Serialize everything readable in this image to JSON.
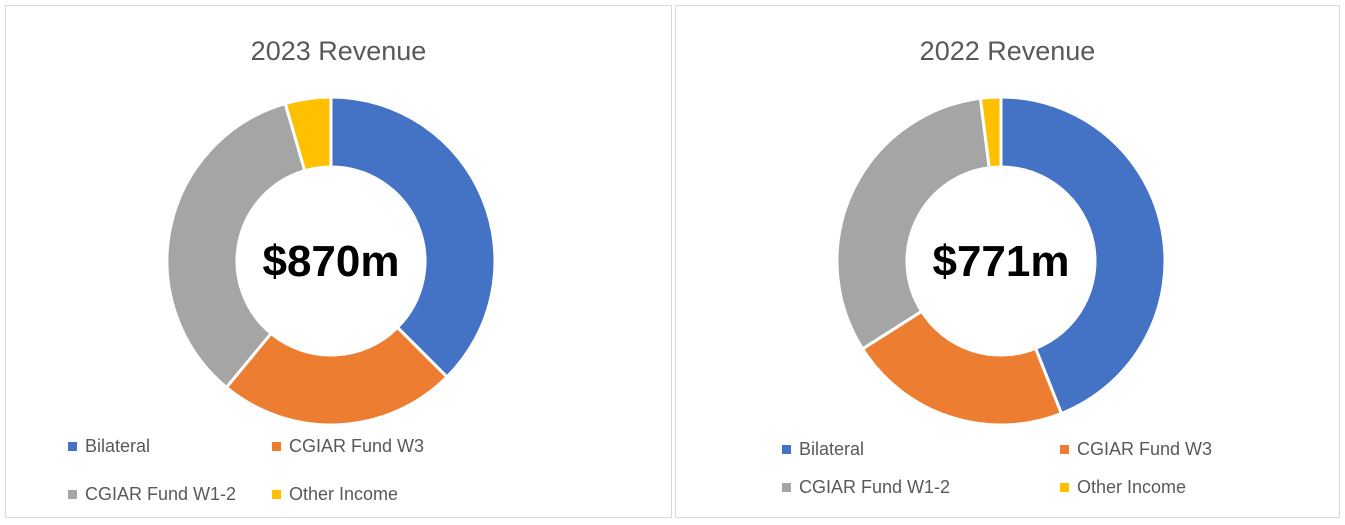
{
  "chart_data": [
    {
      "type": "pie",
      "title": "2023 Revenue",
      "center_label": "$870m",
      "categories": [
        "Bilateral",
        "CGIAR Fund W3",
        "CGIAR Fund W1-2",
        "Other Income"
      ],
      "values": [
        37.5,
        23.5,
        34.5,
        4.5
      ],
      "colors": [
        "#4472C4",
        "#ED7D31",
        "#A5A5A5",
        "#FFC000"
      ],
      "legend": {
        "placement": "bottom",
        "items": [
          "Bilateral",
          "CGIAR Fund W3",
          "CGIAR Fund W1-2",
          "Other Income"
        ]
      }
    },
    {
      "type": "pie",
      "title": "2022 Revenue",
      "center_label": "$771m",
      "categories": [
        "Bilateral",
        "CGIAR Fund W3",
        "CGIAR Fund W1-2",
        "Other Income"
      ],
      "values": [
        44,
        22,
        32,
        2
      ],
      "colors": [
        "#4472C4",
        "#ED7D31",
        "#A5A5A5",
        "#FFC000"
      ],
      "legend": {
        "placement": "bottom",
        "items": [
          "Bilateral",
          "CGIAR Fund W3",
          "CGIAR Fund W1-2",
          "Other Income"
        ]
      }
    }
  ]
}
